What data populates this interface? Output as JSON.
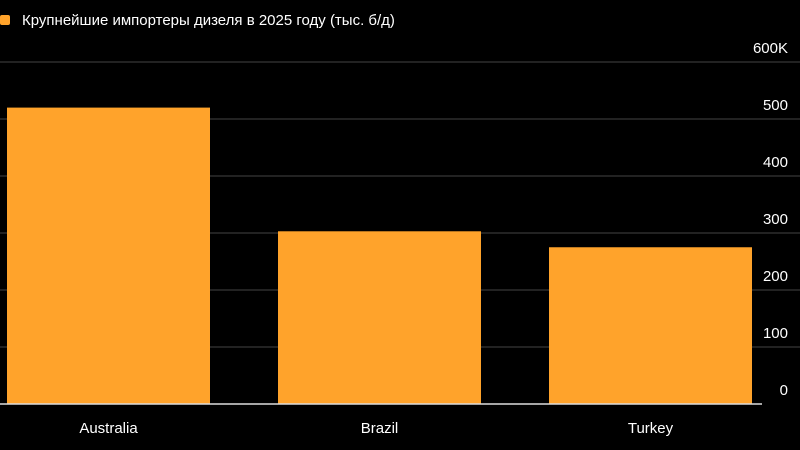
{
  "chart_data": {
    "type": "bar",
    "categories": [
      "Australia",
      "Brazil",
      "Turkey"
    ],
    "series": [
      {
        "name": "Крупнейшие импортеры дизеля в 2025 году (тыс. б/д)",
        "color": "#ffa32b",
        "values": [
          520,
          303,
          275
        ]
      }
    ],
    "ylim": [
      0,
      600
    ],
    "yticks": [
      0,
      100,
      200,
      300,
      400,
      500,
      {
        "value": 600,
        "label": "600K"
      }
    ],
    "grid": true
  }
}
